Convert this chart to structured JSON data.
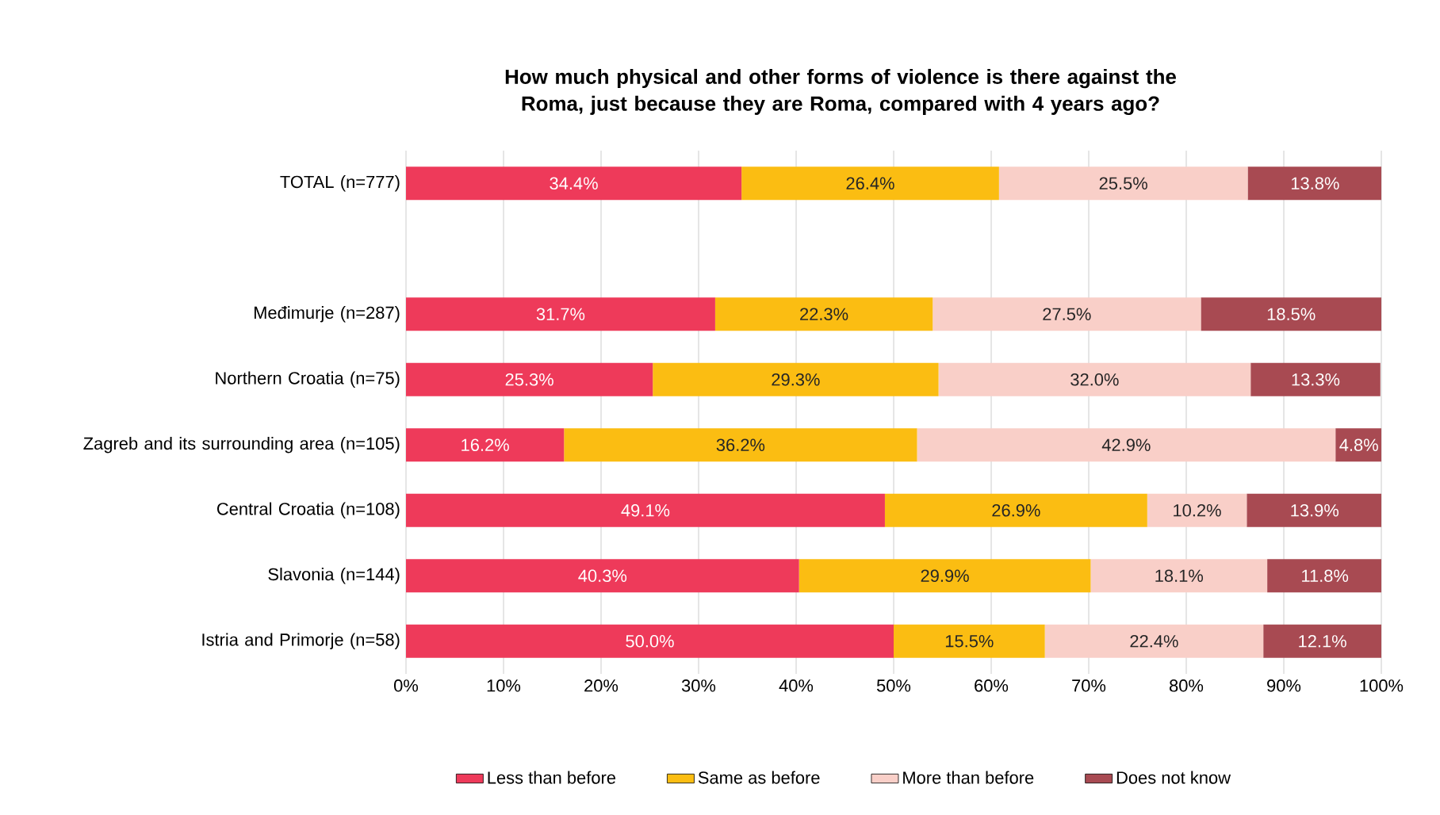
{
  "chart_data": {
    "type": "bar",
    "orientation": "horizontal",
    "stacked": true,
    "title": "How much physical and other forms of violence is there against the Roma, just because they are Roma, compared with 4 years ago?",
    "categories": [
      "TOTAL (n=777)",
      null,
      "Međimurje (n=287)",
      "Northern Croatia (n=75)",
      "Zagreb and its surrounding area (n=105)",
      "Central Croatia (n=108)",
      "Slavonia (n=144)",
      "Istria and Primorje (n=58)"
    ],
    "series": [
      {
        "name": "Less than before",
        "color": "#ee3a5a",
        "values": [
          34.4,
          null,
          31.7,
          25.3,
          16.2,
          49.1,
          40.3,
          50.0
        ],
        "value_labels": [
          "34.4%",
          null,
          "31.7%",
          "25.3%",
          "16.2%",
          "49.1%",
          "40.3%",
          "50.0%"
        ]
      },
      {
        "name": "Same as before",
        "color": "#fbbd12",
        "values": [
          26.4,
          null,
          22.3,
          29.3,
          36.2,
          26.9,
          29.9,
          15.5
        ],
        "value_labels": [
          "26.4%",
          null,
          "22.3%",
          "29.3%",
          "36.2%",
          "26.9%",
          "29.9%",
          "15.5%"
        ]
      },
      {
        "name": "More than before",
        "color": "#f9cfc8",
        "values": [
          25.5,
          null,
          27.5,
          32.0,
          42.9,
          10.2,
          18.1,
          22.4
        ],
        "value_labels": [
          "25.5%",
          null,
          "27.5%",
          "32.0%",
          "42.9%",
          "10.2%",
          "18.1%",
          "22.4%"
        ]
      },
      {
        "name": "Does not know",
        "color": "#a84a52",
        "values": [
          13.8,
          null,
          18.5,
          13.3,
          4.8,
          13.9,
          11.8,
          12.1
        ],
        "value_labels": [
          "13.8%",
          null,
          "18.5%",
          "13.3%",
          "4.8%",
          "13.9%",
          "11.8%",
          "12.1%"
        ]
      }
    ],
    "xlim": [
      0,
      100
    ],
    "xticks": [
      {
        "value": 0,
        "label": "0%"
      },
      {
        "value": 10,
        "label": "10%"
      },
      {
        "value": 20,
        "label": "20%"
      },
      {
        "value": 30,
        "label": "30%"
      },
      {
        "value": 40,
        "label": "40%"
      },
      {
        "value": 50,
        "label": "50%"
      },
      {
        "value": 60,
        "label": "60%"
      },
      {
        "value": 70,
        "label": "70%"
      },
      {
        "value": 80,
        "label": "80%"
      },
      {
        "value": 90,
        "label": "90%"
      },
      {
        "value": 100,
        "label": "100%"
      }
    ],
    "grid": "x",
    "legend": "bottom"
  }
}
